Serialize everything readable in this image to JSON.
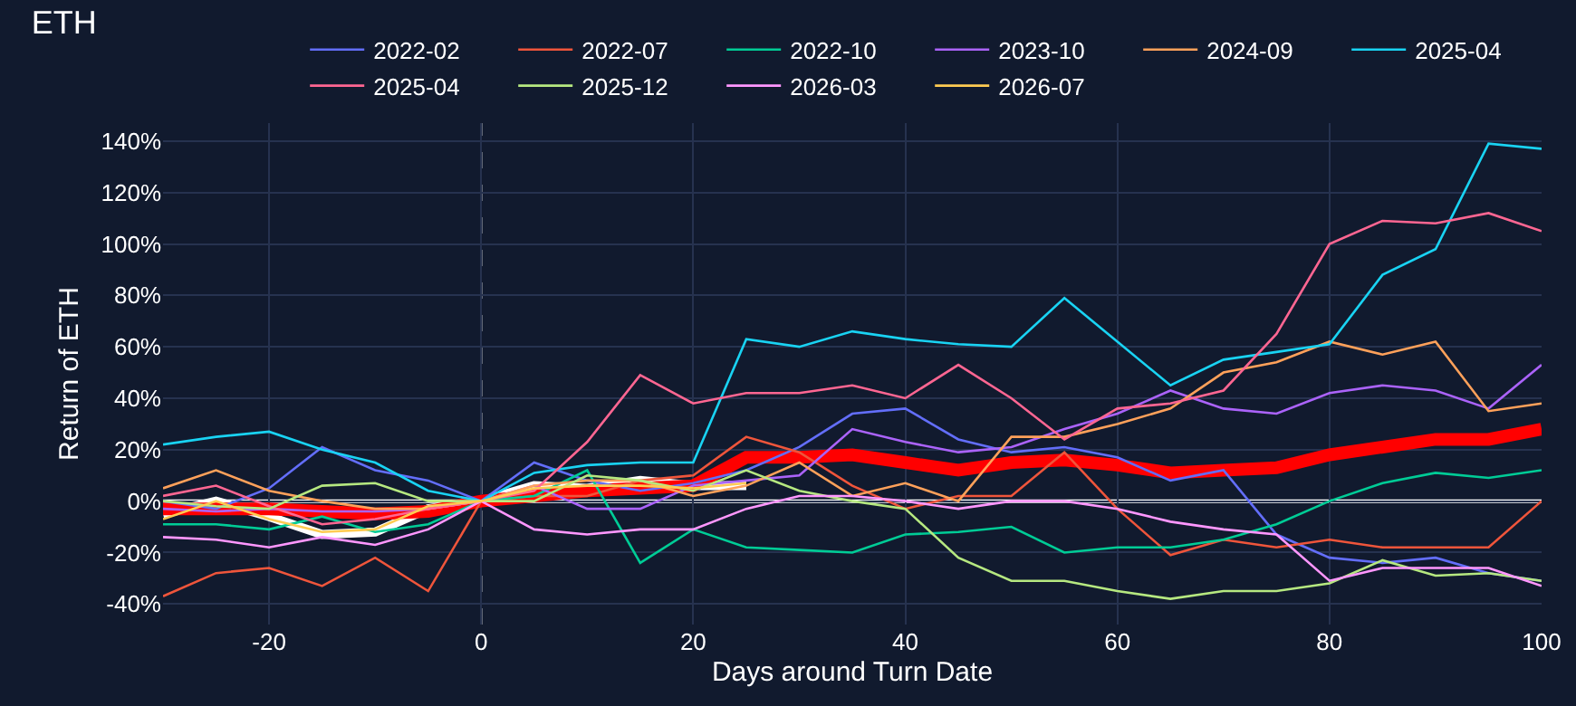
{
  "chart_data": {
    "type": "line",
    "title": "ETH",
    "xlabel": "Days around Turn Date",
    "ylabel": "Return of ETH",
    "x": [
      -30,
      -25,
      -20,
      -15,
      -10,
      -5,
      0,
      5,
      10,
      15,
      20,
      25,
      30,
      35,
      40,
      45,
      50,
      55,
      60,
      65,
      70,
      75,
      80,
      85,
      90,
      95,
      100
    ],
    "series": [
      {
        "name": "2022-02",
        "color": "#636efa",
        "values": [
          0,
          -3,
          5,
          21,
          12,
          8,
          0,
          15,
          8,
          4,
          7,
          12,
          21,
          34,
          36,
          24,
          19,
          21,
          17,
          8,
          12,
          -13,
          -22,
          -24,
          -22,
          -28,
          -31
        ]
      },
      {
        "name": "2022-07",
        "color": "#ef553b",
        "values": [
          -37,
          -28,
          -26,
          -33,
          -22,
          -35,
          0,
          2,
          2,
          8,
          10,
          25,
          19,
          6,
          -3,
          2,
          2,
          19,
          -3,
          -21,
          -15,
          -18,
          -15,
          -18,
          -18,
          -18,
          0
        ]
      },
      {
        "name": "2022-10",
        "color": "#00cc96",
        "values": [
          -9,
          -9,
          -11,
          -6,
          -12,
          -9,
          0,
          2,
          12,
          -24,
          -11,
          -18,
          -19,
          -20,
          -13,
          -12,
          -10,
          -20,
          -18,
          -18,
          -15,
          -9,
          0,
          7,
          11,
          9,
          12
        ]
      },
      {
        "name": "2023-10",
        "color": "#ab63fa",
        "values": [
          -3,
          -4,
          -3,
          -4,
          -4,
          -3,
          0,
          6,
          -3,
          -3,
          6,
          8,
          10,
          28,
          23,
          19,
          21,
          28,
          34,
          43,
          36,
          34,
          42,
          45,
          43,
          36,
          53
        ]
      },
      {
        "name": "2024-09",
        "color": "#ffa15a",
        "values": [
          5,
          12,
          4,
          0,
          -3,
          -3,
          0,
          6,
          8,
          8,
          2,
          6,
          15,
          2,
          7,
          0,
          25,
          25,
          30,
          36,
          50,
          54,
          62,
          57,
          62,
          35,
          38
        ]
      },
      {
        "name": "2025-04",
        "color": "#19d3f3",
        "values": [
          22,
          25,
          27,
          20,
          15,
          4,
          0,
          11,
          14,
          15,
          15,
          63,
          60,
          66,
          63,
          61,
          60,
          79,
          62,
          45,
          55,
          58,
          61,
          88,
          98,
          139,
          137
        ]
      },
      {
        "name": "2025-04",
        "color": "#ff6692",
        "values": [
          2,
          6,
          -2,
          -9,
          -7,
          -3,
          0,
          4,
          23,
          49,
          38,
          42,
          42,
          45,
          40,
          53,
          40,
          24,
          36,
          38,
          43,
          65,
          100,
          109,
          108,
          112,
          105
        ]
      },
      {
        "name": "2025-12",
        "color": "#b6e880",
        "values": [
          0,
          -2,
          -3,
          6,
          7,
          0,
          0,
          0,
          10,
          8,
          4,
          12,
          4,
          0,
          -3,
          -22,
          -31,
          -31,
          -35,
          -38,
          -35,
          -35,
          -32,
          -23,
          -29,
          -28,
          -31
        ]
      },
      {
        "name": "2026-03",
        "color": "#ff97ff",
        "values": [
          -14,
          -15,
          -18,
          -14,
          -17,
          -11,
          0,
          -11,
          -13,
          -11,
          -11,
          -3,
          2,
          2,
          0,
          -3,
          0,
          0,
          -3,
          -8,
          -11,
          -13,
          -31,
          -26,
          -26,
          -26,
          -33
        ]
      },
      {
        "color": "#ffffff",
        "values": [
          -5,
          0,
          -6,
          -13,
          -12,
          -3,
          0,
          6,
          5,
          8,
          6,
          6,
          null,
          null,
          null,
          null,
          null,
          null,
          null,
          null,
          null,
          null,
          null,
          null,
          null,
          null,
          null
        ]
      },
      {
        "name": "2026-07",
        "color": "#fecb52",
        "values": [
          -7,
          0,
          -7,
          -12,
          -11,
          -2,
          0,
          5,
          6,
          6,
          5,
          7,
          null,
          null,
          null,
          null,
          null,
          null,
          null,
          null,
          null,
          null,
          null,
          null,
          null,
          null,
          null
        ]
      },
      {
        "color": "#ff0000",
        "values": [
          -3,
          -3,
          -3,
          -4,
          -5,
          -4,
          0,
          2,
          4,
          5,
          6,
          17,
          17,
          18,
          15,
          12,
          15,
          16,
          14,
          11,
          12,
          13,
          18,
          21,
          24,
          24,
          28
        ]
      }
    ],
    "xlim": [
      -30,
      100
    ],
    "xticks": [
      -20,
      0,
      20,
      40,
      60,
      80,
      100
    ],
    "ylim": [
      -48,
      147
    ],
    "yticks": [
      {
        "value": -40,
        "label": "-40%"
      },
      {
        "value": -20,
        "label": "-20%"
      },
      {
        "value": 0,
        "label": "0%"
      },
      {
        "value": 20,
        "label": "20%"
      },
      {
        "value": 40,
        "label": "40%"
      },
      {
        "value": 60,
        "label": "60%"
      },
      {
        "value": 80,
        "label": "80%"
      },
      {
        "value": 100,
        "label": "100%"
      },
      {
        "value": 120,
        "label": "120%"
      },
      {
        "value": 140,
        "label": "140%"
      }
    ],
    "ref_lines": [
      {
        "axis": "x",
        "value": 0,
        "color": "#c8ccd4",
        "line_style": "dashed"
      },
      {
        "axis": "y",
        "value": 0,
        "color": "#ffffff",
        "line_style": "solid"
      }
    ],
    "grid": true,
    "legend": "top",
    "marker": "none",
    "line_style": "solid"
  }
}
